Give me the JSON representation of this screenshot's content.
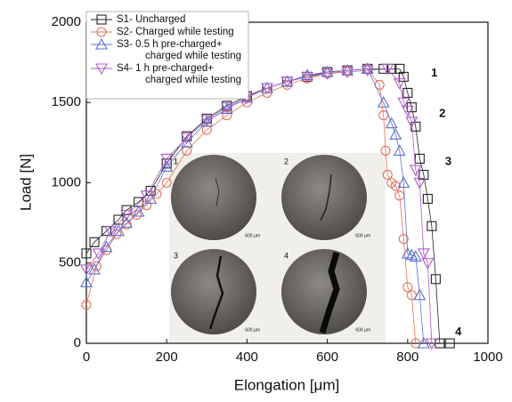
{
  "chart_data": {
    "type": "line",
    "xlabel": "Elongation [μm]",
    "ylabel": "Load [N]",
    "xlim": [
      0,
      1000
    ],
    "xticks": [
      0,
      200,
      400,
      600,
      800,
      1000
    ],
    "ylim": [
      0,
      2000
    ],
    "yticks": [
      0,
      500,
      1000,
      1500,
      2000
    ],
    "legend": "upper left",
    "series": [
      {
        "name": "S1- Uncharged",
        "color": "#222222",
        "marker": "square",
        "x": [
          0,
          20,
          50,
          80,
          100,
          130,
          160,
          200,
          250,
          300,
          350,
          400,
          450,
          500,
          550,
          600,
          650,
          700,
          740,
          760,
          780,
          790,
          800,
          810,
          820,
          830,
          840,
          850,
          860,
          870,
          880,
          905
        ],
        "values": [
          560,
          630,
          700,
          770,
          830,
          880,
          950,
          1120,
          1290,
          1400,
          1480,
          1540,
          1590,
          1630,
          1660,
          1690,
          1700,
          1710,
          1710,
          1710,
          1710,
          1660,
          1560,
          1470,
          1350,
          1150,
          1050,
          900,
          730,
          400,
          0,
          0
        ]
      },
      {
        "name": "S2- Charged while testing",
        "color": "#e8705a",
        "marker": "circle",
        "x": [
          0,
          25,
          50,
          75,
          100,
          125,
          150,
          175,
          200,
          250,
          300,
          350,
          400,
          450,
          500,
          550,
          600,
          650,
          700,
          730,
          740,
          745,
          750,
          760,
          770,
          780,
          790,
          800,
          810,
          820
        ],
        "values": [
          240,
          480,
          580,
          680,
          740,
          800,
          860,
          930,
          1000,
          1200,
          1330,
          1420,
          1500,
          1560,
          1610,
          1650,
          1680,
          1700,
          1710,
          1610,
          1420,
          1200,
          1050,
          1000,
          980,
          920,
          650,
          350,
          300,
          0
        ]
      },
      {
        "name": "S3- 0.5 h pre-charged+\ncharged while testing",
        "color": "#5a6ed0",
        "marker": "triangle-up",
        "x": [
          0,
          20,
          50,
          80,
          100,
          130,
          160,
          200,
          250,
          300,
          350,
          400,
          450,
          500,
          550,
          600,
          650,
          700,
          740,
          760,
          770,
          780,
          790,
          800,
          810,
          820,
          830,
          840
        ],
        "values": [
          380,
          460,
          600,
          700,
          750,
          820,
          900,
          1100,
          1250,
          1380,
          1460,
          1530,
          1590,
          1630,
          1670,
          1690,
          1700,
          1710,
          1500,
          1370,
          1300,
          1200,
          1000,
          560,
          550,
          540,
          300,
          0
        ]
      },
      {
        "name": "S4- 1 h pre-charged+\ncharged while testing",
        "color": "#b05ac8",
        "marker": "triangle-down",
        "x": [
          0,
          30,
          60,
          100,
          150,
          200,
          250,
          300,
          350,
          400,
          450,
          500,
          550,
          600,
          650,
          700,
          750,
          780,
          790,
          800,
          810,
          820,
          830,
          840,
          850,
          860
        ],
        "values": [
          460,
          560,
          700,
          800,
          920,
          1150,
          1280,
          1390,
          1470,
          1530,
          1590,
          1630,
          1660,
          1680,
          1690,
          1700,
          1710,
          1620,
          1500,
          1450,
          1380,
          1080,
          1000,
          560,
          500,
          0
        ]
      }
    ],
    "annotations": [
      {
        "text": "1",
        "x": 845,
        "y": 1680
      },
      {
        "text": "2",
        "x": 865,
        "y": 1430
      },
      {
        "text": "3",
        "x": 880,
        "y": 1130
      },
      {
        "text": "4",
        "x": 905,
        "y": 70
      }
    ],
    "insets": [
      {
        "label": "1",
        "scale": "600 μm"
      },
      {
        "label": "2",
        "scale": "600 μm"
      },
      {
        "label": "3",
        "scale": "600 μm"
      },
      {
        "label": "4",
        "scale": "600 μm"
      }
    ]
  }
}
